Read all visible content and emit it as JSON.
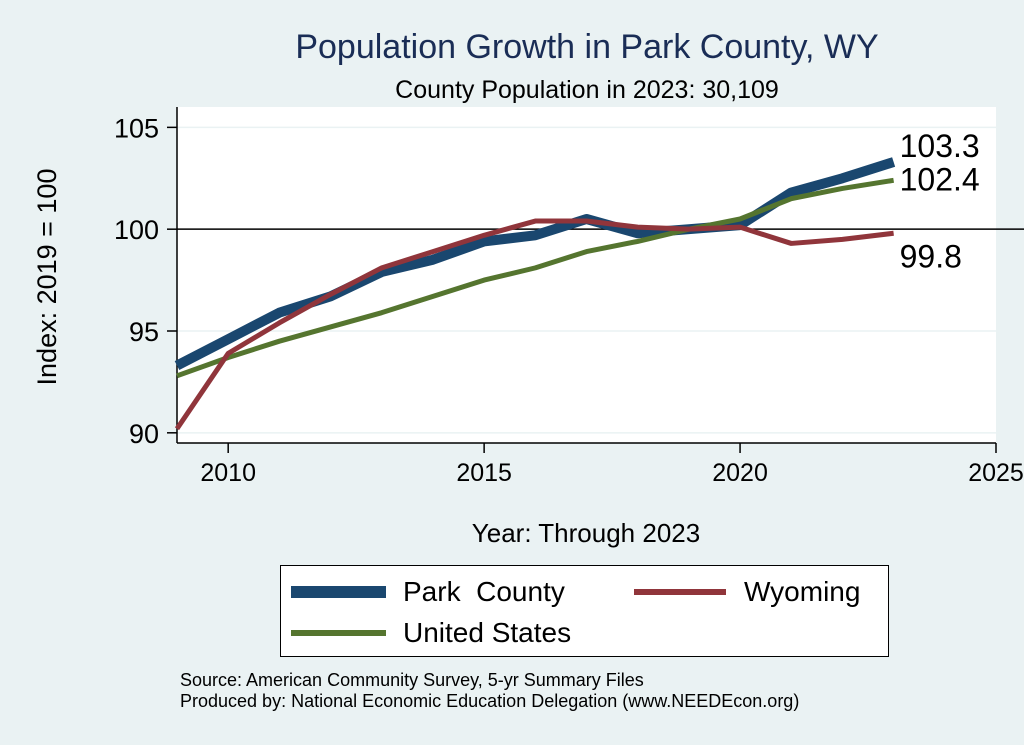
{
  "chart_data": {
    "type": "line",
    "title": "Population Growth in Park County, WY",
    "subtitle": "County Population in 2023: 30,109",
    "xlabel": "Year: Through 2023",
    "ylabel": "Index: 2019 = 100",
    "xlim": [
      2009,
      2025
    ],
    "ylim": [
      89.5,
      106
    ],
    "x_ticks": [
      2010,
      2015,
      2020,
      2025
    ],
    "x_tick_labels": [
      "2010",
      "2015",
      "2020",
      "2025"
    ],
    "y_ticks": [
      90,
      95,
      100,
      105
    ],
    "y_tick_labels": [
      "90",
      "95",
      "100",
      "105"
    ],
    "reference_line": 100,
    "x": [
      2009,
      2010,
      2011,
      2012,
      2013,
      2014,
      2015,
      2016,
      2017,
      2018,
      2019,
      2020,
      2021,
      2022,
      2023
    ],
    "series": [
      {
        "name": "Park  County",
        "color": "#1a476f",
        "values": [
          93.3,
          94.6,
          95.9,
          96.7,
          97.9,
          98.5,
          99.4,
          99.7,
          100.5,
          99.8,
          100.0,
          100.2,
          101.8,
          102.5,
          103.3
        ],
        "end_label": "103.3"
      },
      {
        "name": "Wyoming",
        "color": "#90353b",
        "values": [
          90.2,
          93.9,
          95.4,
          96.8,
          98.1,
          98.9,
          99.7,
          100.4,
          100.4,
          100.1,
          100.0,
          100.1,
          99.3,
          99.5,
          99.8
        ],
        "end_label": "99.8"
      },
      {
        "name": "United States",
        "color": "#55752f",
        "values": [
          92.8,
          93.7,
          94.5,
          95.2,
          95.9,
          96.7,
          97.5,
          98.1,
          98.9,
          99.4,
          100.0,
          100.5,
          101.5,
          102.0,
          102.4
        ],
        "end_label": "102.4"
      }
    ]
  },
  "legend": {
    "items": [
      {
        "label": "Park  County",
        "color": "#1a476f"
      },
      {
        "label": "Wyoming",
        "color": "#90353b"
      },
      {
        "label": "United States",
        "color": "#55752f"
      }
    ]
  },
  "notes": {
    "source": "Source: American Community Survey, 5-yr Summary Files",
    "produced_by": "Produced by: National Economic Education Delegation (www.NEEDEcon.org)"
  }
}
